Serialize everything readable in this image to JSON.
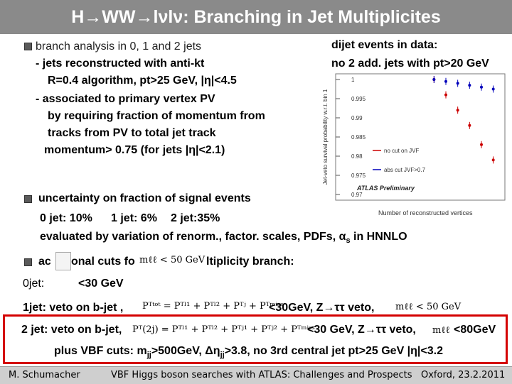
{
  "title": {
    "text": "H→WW→lνlν: Branching in Jet Multiplicites"
  },
  "left": {
    "bullet1": "branch analysis  in  0, 1 and 2  jets",
    "l1": "-  jets reconstructed with anti-kt",
    "l2": "R=0.4 algorithm,  pt>25 GeV, |η|<4.5",
    "l3": "-  associated to primary vertex PV",
    "l4": "by requiring fraction of momentum from",
    "l5": "tracks from PV to total jet track",
    "l6": "momentum> 0.75 (for jets |η|<2.1)"
  },
  "right": {
    "l1": "dijet events in data:",
    "l2": "no 2 add. jets with pt>20 GeV"
  },
  "uncertainty": {
    "bullet": "uncertainty on fraction of signal events",
    "j0": "0 jet: 10%",
    "j1": "1 jet: 6%",
    "j2": "2 jet:35%",
    "eval": "evaluated by variation of renorm., factor. scales, PDFs, α",
    "eval_sub": "s",
    "eval_tail": " in HNNLO"
  },
  "cuts": {
    "bullet_a": "ac",
    "bullet_b": "onal cuts fo",
    "bullet_c": "ltiplicity branch:",
    "mll_cut": "mℓℓ < 50 GeV",
    "j0_label": "0jet:",
    "j0_val": "<30 GeV",
    "j1_text": "1jet:  veto on b-jet ,",
    "j1_formula": "Pᵀᵗᵒᵗ = Pᵀˡ¹ + Pᵀˡ² + Pᵀʲ + Pᵀᵐⁱˢˢ",
    "j1_tail": "<30GeV, Z→ττ veto,",
    "j1_mll": "mℓℓ < 50 GeV",
    "j2_text": "2 jet: veto on b-jet,",
    "j2_formula": "Pᵀ(2j) = Pᵀˡ¹ + Pᵀˡ² + Pᵀʲ¹ + Pᵀʲ² + Pᵀᵐⁱˢˢ",
    "j2_tail": "<30 GeV, Z→ττ veto,",
    "j2_mll": "mℓℓ",
    "j2_mll_tail": "<80GeV",
    "vbf": "plus VBF cuts: m",
    "vbf_sub1": "jj",
    "vbf_mid": ">500GeV, Δη",
    "vbf_sub2": "jj",
    "vbf_tail": ">3.8, no 3rd central jet  pt>25 GeV |η|<3.2"
  },
  "chart_data": {
    "type": "scatter",
    "ylabel": "Jet-veto survival probability w.r.t. bin 1",
    "xlabel": "Number of reconstructed vertices",
    "yticks": [
      "1",
      "0.995",
      "0.99",
      "0.985",
      "0.98",
      "0.975",
      "0.97"
    ],
    "ylim": [
      0.97,
      1.0
    ],
    "legend": [
      "no cut on JVF",
      "abs cut JVF>0.7"
    ],
    "annotation": "ATLAS Preliminary",
    "series": [
      {
        "name": "no cut on JVF",
        "color": "#cc0000",
        "x": [
          1,
          2,
          3,
          4,
          5,
          6
        ],
        "values": [
          1.0,
          0.996,
          0.992,
          0.988,
          0.983,
          0.979
        ]
      },
      {
        "name": "abs cut JVF>0.7",
        "color": "#0000bb",
        "x": [
          1,
          2,
          3,
          4,
          5,
          6
        ],
        "values": [
          1.0,
          0.9995,
          0.999,
          0.9985,
          0.998,
          0.9975
        ]
      }
    ]
  },
  "footer": {
    "author": "M. Schumacher",
    "talk": "VBF Higgs boson searches with ATLAS: Challenges and Prospects",
    "place": "Oxford, 23.2.2011"
  }
}
